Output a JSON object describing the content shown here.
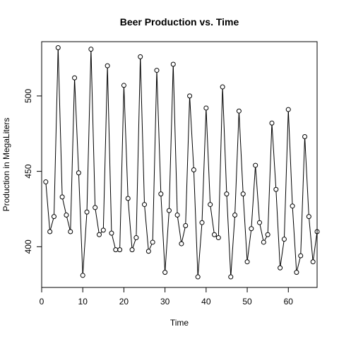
{
  "chart_data": {
    "type": "line",
    "title": "Beer Production vs. Time",
    "xlabel": "Time",
    "ylabel": "Production in MegaLiters",
    "xlim": [
      0,
      67
    ],
    "ylim": [
      373,
      536
    ],
    "x_ticks": [
      0,
      10,
      20,
      30,
      40,
      50,
      60
    ],
    "y_ticks": [
      400,
      450,
      500
    ],
    "grid": false,
    "legend": "none",
    "marker": "open-circle",
    "color": "#000000",
    "series": [
      {
        "x": [
          1,
          2,
          3,
          4,
          5,
          6,
          7,
          8,
          9,
          10,
          11,
          12,
          13,
          14,
          15,
          16,
          17,
          18,
          19,
          20,
          21,
          22,
          23,
          24,
          25,
          26,
          27,
          28,
          29,
          30,
          31,
          32,
          33,
          34,
          35,
          36,
          37,
          38,
          39,
          40,
          41,
          42,
          43,
          44,
          45,
          46,
          47,
          48,
          49,
          50,
          51,
          52,
          53,
          54,
          55,
          56,
          57,
          58,
          59,
          60,
          61,
          62,
          63,
          64,
          65,
          66,
          67
        ],
        "values": [
          443,
          410,
          420,
          532,
          433,
          421,
          410,
          512,
          449,
          381,
          423,
          531,
          426,
          408,
          411,
          520,
          409,
          398,
          398,
          507,
          432,
          398,
          406,
          526,
          428,
          397,
          403,
          517,
          435,
          383,
          424,
          521,
          421,
          402,
          414,
          500,
          451,
          380,
          416,
          492,
          428,
          408,
          406,
          506,
          435,
          380,
          421,
          490,
          435,
          390,
          412,
          454,
          416,
          403,
          408,
          482,
          438,
          386,
          405,
          491,
          427,
          383,
          394,
          473,
          420,
          390,
          410
        ]
      }
    ]
  }
}
